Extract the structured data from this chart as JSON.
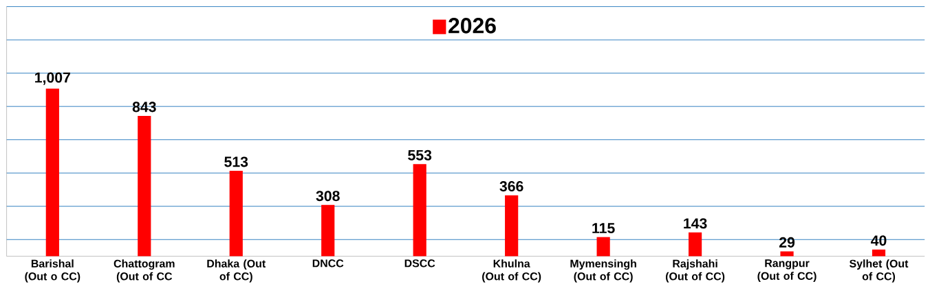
{
  "chart_data": {
    "type": "bar",
    "categories": [
      "Barishal (Out o CC)",
      "Chattogram (Out of CC",
      "Dhaka (Out of CC)",
      "DNCC",
      "DSCC",
      "Khulna (Out of CC)",
      "Mymensingh (Out of CC)",
      "Rajshahi (Out of CC)",
      "Rangpur (Out of CC)",
      "Sylhet (Out of CC)"
    ],
    "series": [
      {
        "name": "2026",
        "color": "#ff0000",
        "values": [
          1007,
          843,
          513,
          308,
          553,
          366,
          115,
          143,
          29,
          40
        ],
        "value_labels": [
          "1,007",
          "843",
          "513",
          "308",
          "553",
          "366",
          "115",
          "143",
          "29",
          "40"
        ]
      }
    ],
    "ylim": [
      0,
      1500
    ],
    "yticks": [
      {
        "value": 100,
        "label": null
      },
      {
        "value": 300,
        "label": null
      },
      {
        "value": 500,
        "label": null
      },
      {
        "value": 700,
        "label": null
      },
      {
        "value": 900,
        "label": null
      },
      {
        "value": 1100,
        "label": null
      },
      {
        "value": 1300,
        "label": null
      },
      {
        "value": 1500,
        "label": null
      }
    ],
    "grid": "y",
    "legend": "top",
    "tick_labels": "x"
  }
}
